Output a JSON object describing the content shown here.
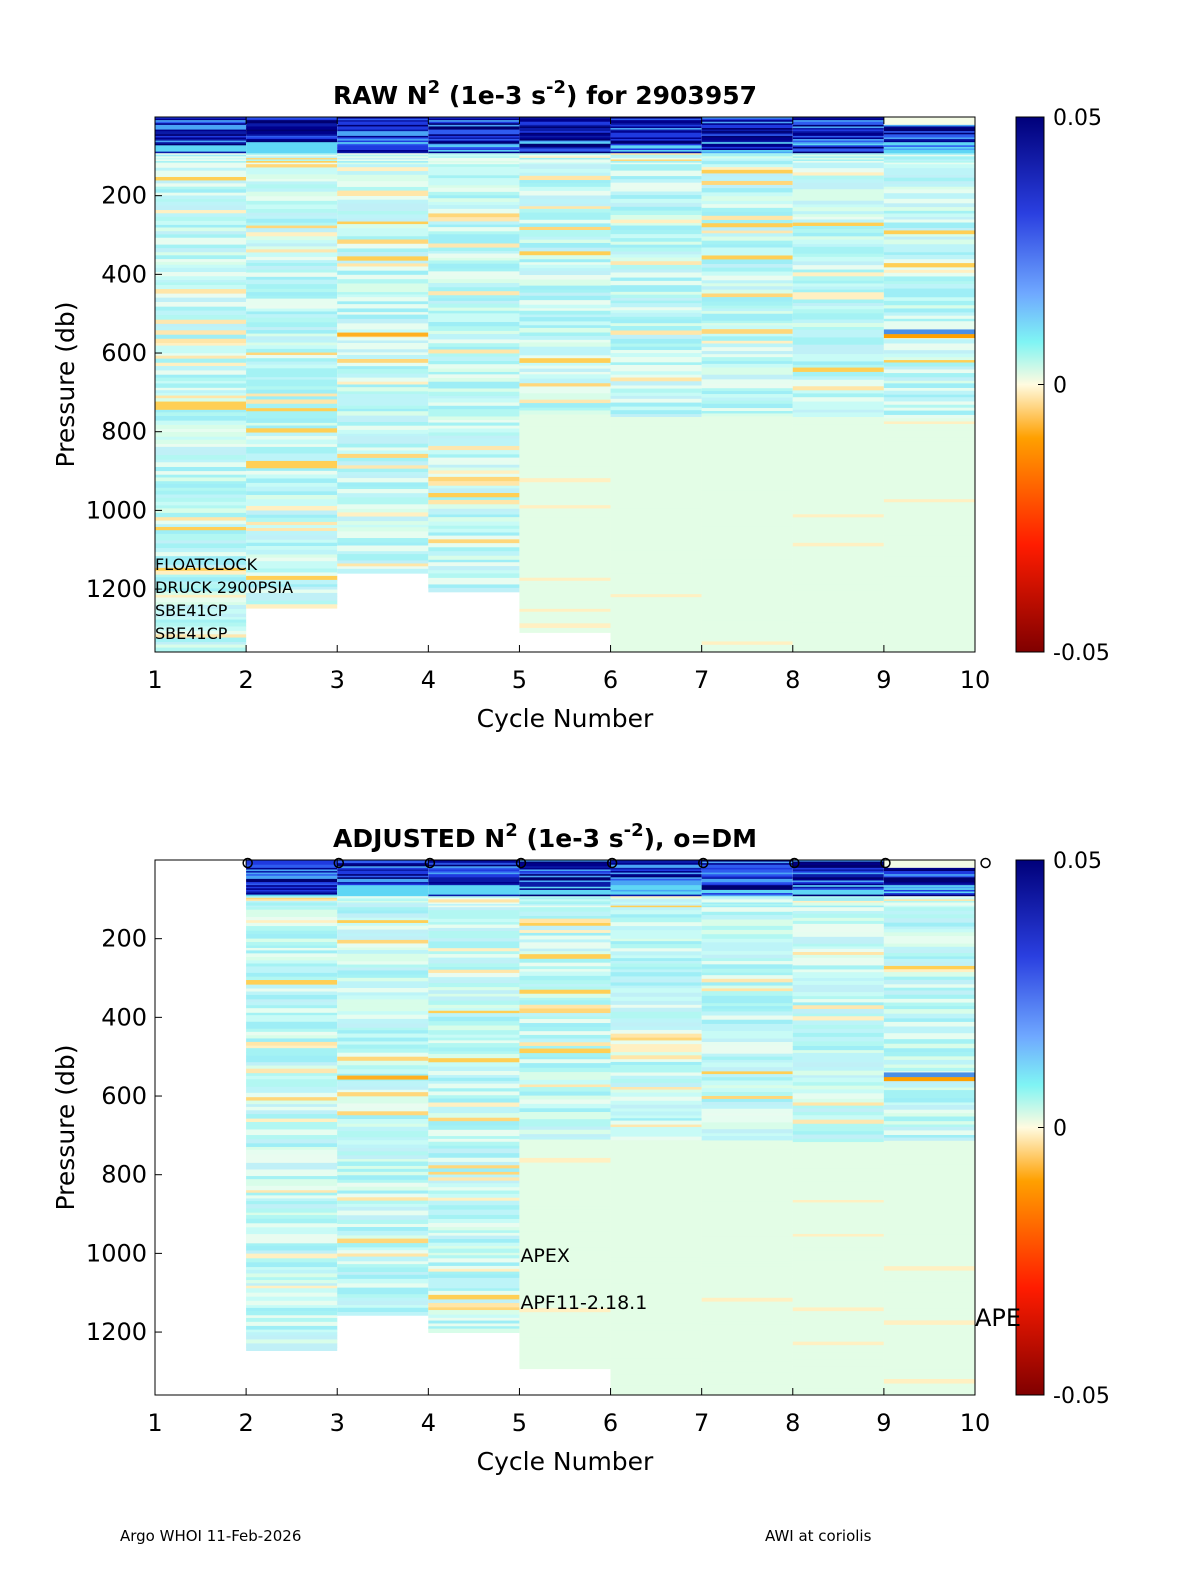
{
  "colors": {
    "high": "#00007a",
    "blue": "#2a3fe0",
    "light_blue": "#6fa8ff",
    "cyan": "#7ff4f4",
    "zero": "#fffbe0",
    "orange": "#ffa000",
    "red": "#ff1c00",
    "low": "#800000",
    "deep_fill": "#e3fde6"
  },
  "chart_data": [
    {
      "type": "heatmap",
      "title": "RAW N^2 (1e-3 s^-2) for 2903957",
      "title_parts": {
        "base": "RAW N",
        "sup1": "2",
        "mid": " (1e-3 s",
        "sup2": "-2",
        "end": ") for 2903957"
      },
      "xlabel": "Cycle Number",
      "ylabel": "Pressure (db)",
      "xlim": [
        1,
        10
      ],
      "ylim": [
        0,
        1360
      ],
      "y_reversed": true,
      "x_ticks": [
        "1",
        "2",
        "3",
        "4",
        "5",
        "6",
        "7",
        "8",
        "9",
        "10"
      ],
      "y_ticks": [
        "200",
        "400",
        "600",
        "800",
        "1000",
        "1200"
      ],
      "colorbar": {
        "min": -0.05,
        "max": 0.05,
        "ticks": [
          "0.05",
          "0",
          "-0.05"
        ]
      },
      "columns": [
        {
          "cycle": 1,
          "max_pressure": 1360
        },
        {
          "cycle": 2,
          "max_pressure": 1240
        },
        {
          "cycle": 3,
          "max_pressure": 1150
        },
        {
          "cycle": 4,
          "max_pressure": 1200
        },
        {
          "cycle": 5,
          "max_pressure": 1300
        },
        {
          "cycle": 6,
          "max_pressure": 1360
        },
        {
          "cycle": 7,
          "max_pressure": 1360
        },
        {
          "cycle": 8,
          "max_pressure": 1360
        },
        {
          "cycle": 9,
          "max_pressure": 1360
        }
      ],
      "annotations": [
        "FLOATCLOCK",
        "DRUCK 2900PSIA",
        "SBE41CP",
        "SBE41CP"
      ]
    },
    {
      "type": "heatmap",
      "title": "ADJUSTED N^2 (1e-3 s^-2), o=DM",
      "title_parts": {
        "base": "ADJUSTED N",
        "sup1": "2",
        "mid": " (1e-3 s",
        "sup2": "-2",
        "end": "), o=DM"
      },
      "xlabel": "Cycle Number",
      "ylabel": "Pressure (db)",
      "xlim": [
        1,
        10
      ],
      "ylim": [
        0,
        1360
      ],
      "y_reversed": true,
      "x_ticks": [
        "1",
        "2",
        "3",
        "4",
        "5",
        "6",
        "7",
        "8",
        "9",
        "10"
      ],
      "y_ticks": [
        "200",
        "400",
        "600",
        "800",
        "1000",
        "1200"
      ],
      "colorbar": {
        "min": -0.05,
        "max": 0.05,
        "ticks": [
          "0.05",
          "0",
          "-0.05"
        ]
      },
      "dm_marker": "o",
      "dm_cycles": [
        2,
        3,
        4,
        5,
        6,
        7,
        8,
        9,
        10
      ],
      "columns": [
        {
          "cycle": 2,
          "max_pressure": 1240
        },
        {
          "cycle": 3,
          "max_pressure": 1150
        },
        {
          "cycle": 4,
          "max_pressure": 1200
        },
        {
          "cycle": 5,
          "max_pressure": 1290
        },
        {
          "cycle": 6,
          "max_pressure": 1360
        },
        {
          "cycle": 7,
          "max_pressure": 1360
        },
        {
          "cycle": 8,
          "max_pressure": 1360
        },
        {
          "cycle": 9,
          "max_pressure": 1360
        }
      ],
      "annotations": [
        "APEX",
        "APF11-2.18.1",
        "APE"
      ]
    }
  ],
  "footer": {
    "left": "Argo WHOI 11-Feb-2026",
    "right": "AWI at coriolis"
  }
}
